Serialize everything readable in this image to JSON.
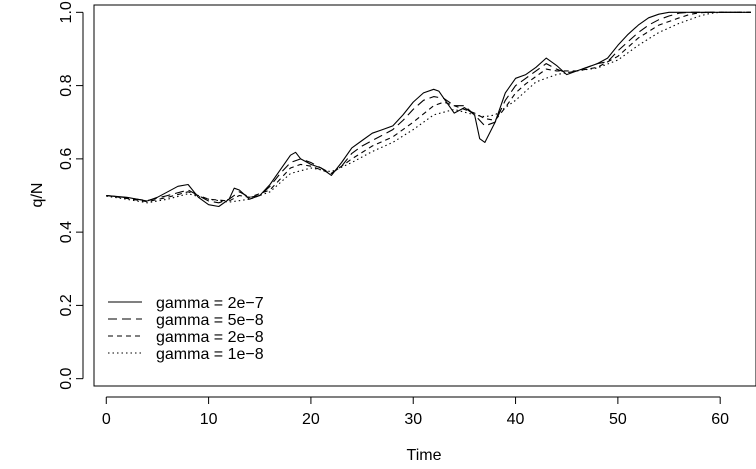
{
  "chart_data": {
    "type": "line",
    "title": "",
    "xlabel": "Time",
    "ylabel": "q/N",
    "xlim": [
      -1.2,
      63.5
    ],
    "ylim": [
      -0.02,
      1.02
    ],
    "xticks": [
      0,
      10,
      20,
      30,
      40,
      50,
      60
    ],
    "yticks": [
      0.0,
      0.2,
      0.4,
      0.6,
      0.8,
      1.0
    ],
    "xtick_labels": [
      "0",
      "10",
      "20",
      "30",
      "40",
      "50",
      "60"
    ],
    "ytick_labels": [
      "0.0",
      "0.2",
      "0.4",
      "0.6",
      "0.8",
      "1.0"
    ],
    "grid": false,
    "legend_position": "bottom-left",
    "series": [
      {
        "name": "gamma = 2e−7",
        "dash": "solid",
        "x": [
          0,
          2,
          3,
          4,
          5,
          6,
          7,
          8,
          9,
          10,
          11,
          12,
          12.5,
          13,
          14,
          15,
          16,
          17,
          18,
          18.5,
          19,
          20,
          21,
          22,
          23,
          24,
          25,
          26,
          27,
          28,
          29,
          30,
          31,
          32,
          32.5,
          33,
          34,
          35,
          36,
          36.5,
          37,
          38,
          39,
          40,
          41,
          42,
          43,
          44,
          45,
          46,
          47,
          48,
          49,
          50,
          51,
          52,
          53,
          54,
          55,
          56,
          57,
          58,
          60,
          62,
          63
        ],
        "values": [
          0.5,
          0.495,
          0.49,
          0.485,
          0.495,
          0.51,
          0.525,
          0.53,
          0.495,
          0.475,
          0.47,
          0.49,
          0.52,
          0.515,
          0.49,
          0.5,
          0.53,
          0.57,
          0.61,
          0.618,
          0.6,
          0.585,
          0.575,
          0.555,
          0.59,
          0.63,
          0.65,
          0.67,
          0.68,
          0.69,
          0.72,
          0.755,
          0.78,
          0.79,
          0.785,
          0.765,
          0.725,
          0.74,
          0.72,
          0.655,
          0.645,
          0.7,
          0.78,
          0.82,
          0.83,
          0.85,
          0.875,
          0.855,
          0.83,
          0.84,
          0.85,
          0.86,
          0.875,
          0.91,
          0.94,
          0.965,
          0.985,
          0.995,
          1.0,
          1.0,
          1.0,
          1.0,
          1.0,
          1.0,
          1.0
        ]
      },
      {
        "name": "gamma = 5e−8",
        "dash": "long",
        "x": [
          0,
          2,
          4,
          6,
          8,
          9,
          10,
          11,
          12,
          13,
          14,
          15,
          16,
          17,
          18,
          19,
          20,
          21,
          22,
          23,
          24,
          25,
          26,
          27,
          28,
          29,
          30,
          31,
          32,
          33,
          34,
          35,
          36,
          37,
          38,
          39,
          40,
          41,
          42,
          43,
          44,
          45,
          46,
          47,
          48,
          49,
          50,
          51,
          52,
          53,
          54,
          55,
          56,
          57,
          58,
          60,
          62,
          63
        ],
        "values": [
          0.5,
          0.494,
          0.486,
          0.5,
          0.515,
          0.5,
          0.485,
          0.48,
          0.49,
          0.51,
          0.495,
          0.5,
          0.525,
          0.56,
          0.59,
          0.6,
          0.59,
          0.575,
          0.56,
          0.58,
          0.615,
          0.635,
          0.65,
          0.665,
          0.68,
          0.705,
          0.735,
          0.76,
          0.77,
          0.765,
          0.745,
          0.745,
          0.72,
          0.69,
          0.7,
          0.76,
          0.8,
          0.82,
          0.84,
          0.86,
          0.845,
          0.835,
          0.84,
          0.85,
          0.86,
          0.865,
          0.895,
          0.92,
          0.945,
          0.965,
          0.98,
          0.99,
          0.998,
          1.0,
          1.0,
          1.0,
          1.0,
          1.0
        ]
      },
      {
        "name": "gamma = 2e−8",
        "dash": "short",
        "x": [
          0,
          2,
          4,
          6,
          8,
          10,
          12,
          13,
          14,
          16,
          18,
          19,
          20,
          22,
          24,
          26,
          28,
          30,
          32,
          33,
          34,
          35,
          36,
          37,
          38,
          39,
          40,
          41,
          42,
          43,
          44,
          46,
          48,
          50,
          52,
          54,
          56,
          57,
          58,
          59,
          60,
          62,
          63
        ],
        "values": [
          0.5,
          0.492,
          0.483,
          0.495,
          0.51,
          0.49,
          0.485,
          0.5,
          0.495,
          0.515,
          0.575,
          0.585,
          0.58,
          0.56,
          0.6,
          0.635,
          0.66,
          0.7,
          0.745,
          0.755,
          0.745,
          0.735,
          0.725,
          0.71,
          0.705,
          0.74,
          0.78,
          0.805,
          0.825,
          0.845,
          0.84,
          0.84,
          0.85,
          0.88,
          0.93,
          0.965,
          0.985,
          0.994,
          0.999,
          1.0,
          1.0,
          1.0,
          1.0
        ]
      },
      {
        "name": "gamma = 1e−8",
        "dash": "dotted",
        "x": [
          0,
          2,
          4,
          6,
          8,
          10,
          12,
          14,
          16,
          18,
          20,
          22,
          24,
          26,
          28,
          30,
          32,
          34,
          36,
          37,
          38,
          40,
          42,
          44,
          46,
          48,
          50,
          52,
          54,
          56,
          58,
          59,
          60,
          62,
          63
        ],
        "values": [
          0.498,
          0.49,
          0.48,
          0.49,
          0.505,
          0.49,
          0.482,
          0.49,
          0.51,
          0.56,
          0.575,
          0.565,
          0.59,
          0.62,
          0.645,
          0.68,
          0.72,
          0.735,
          0.72,
          0.715,
          0.72,
          0.76,
          0.81,
          0.83,
          0.84,
          0.848,
          0.87,
          0.91,
          0.945,
          0.97,
          0.99,
          0.997,
          1.0,
          1.0,
          1.0
        ]
      }
    ]
  }
}
